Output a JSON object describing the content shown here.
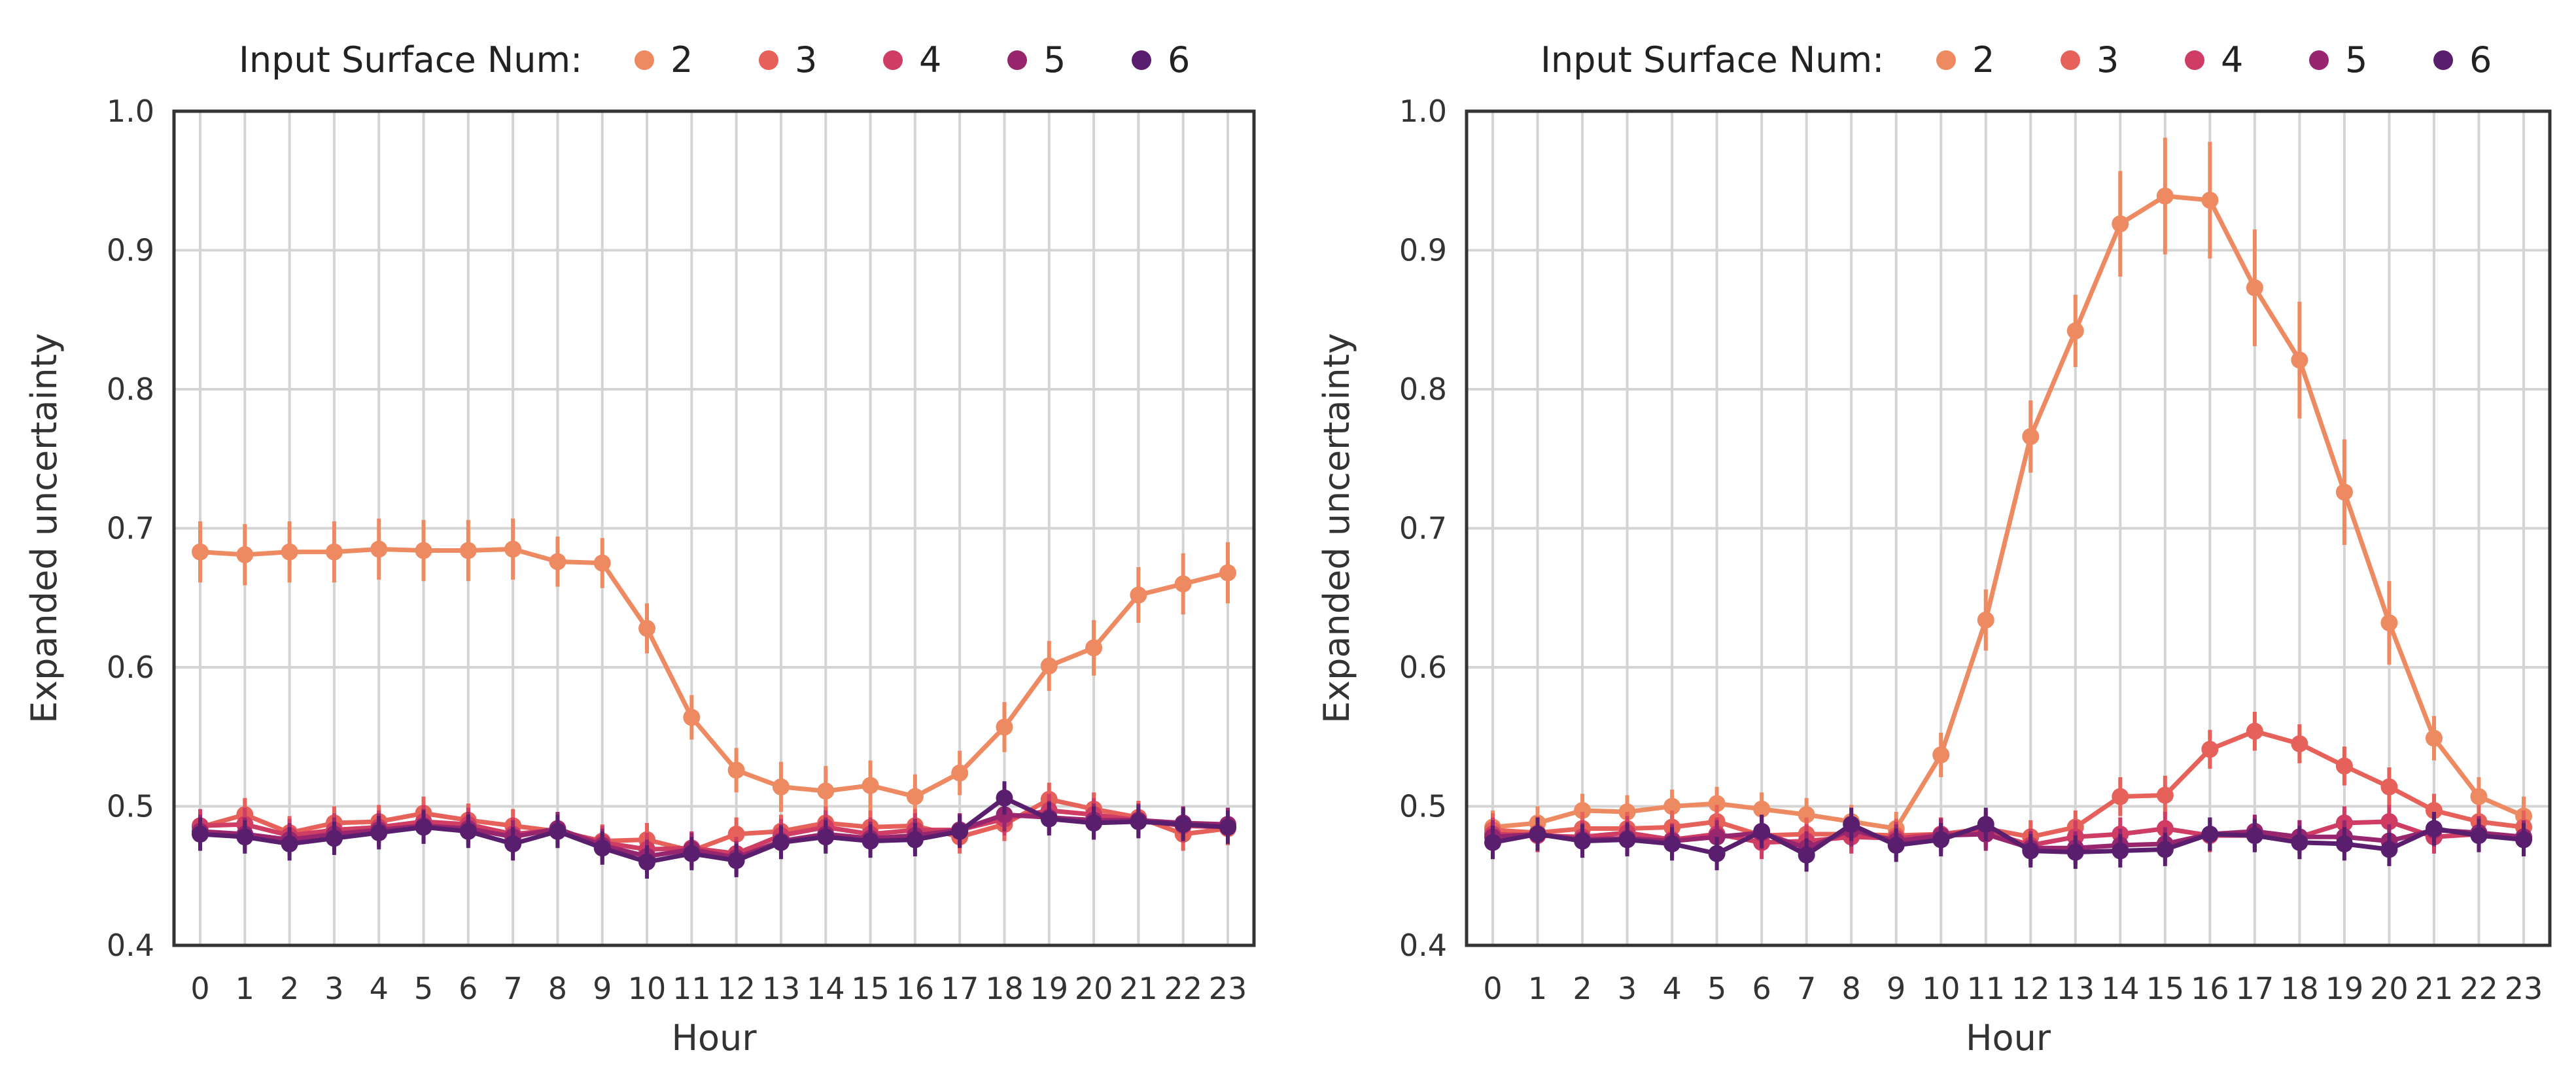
{
  "colors": {
    "2": "#ee8a62",
    "3": "#e6615a",
    "4": "#cf3c64",
    "5": "#97266f",
    "6": "#5a1e6e",
    "grid": "#d4d4d4",
    "frame": "#333333"
  },
  "chart_data": [
    {
      "type": "line",
      "legend_title": "Input Surface Num:",
      "legend_position": "top",
      "xlabel": "Hour",
      "ylabel": "Expanded uncertainty",
      "x": [
        0,
        1,
        2,
        3,
        4,
        5,
        6,
        7,
        8,
        9,
        10,
        11,
        12,
        13,
        14,
        15,
        16,
        17,
        18,
        19,
        20,
        21,
        22,
        23
      ],
      "ylim": [
        0.4,
        1.0
      ],
      "yticks": [
        "0.4",
        "0.5",
        "0.6",
        "0.7",
        "0.8",
        "0.9",
        "1.0"
      ],
      "grid": true,
      "series": [
        {
          "name": "2",
          "values": [
            0.683,
            0.681,
            0.683,
            0.683,
            0.685,
            0.684,
            0.684,
            0.685,
            0.676,
            0.675,
            0.628,
            0.564,
            0.526,
            0.514,
            0.511,
            0.515,
            0.507,
            0.524,
            0.557,
            0.601,
            0.614,
            0.652,
            0.66,
            0.668
          ],
          "errors": [
            0.022,
            0.022,
            0.022,
            0.022,
            0.022,
            0.022,
            0.022,
            0.022,
            0.018,
            0.018,
            0.018,
            0.016,
            0.016,
            0.018,
            0.018,
            0.018,
            0.016,
            0.016,
            0.018,
            0.018,
            0.02,
            0.02,
            0.022,
            0.022
          ]
        },
        {
          "name": "3",
          "values": [
            0.485,
            0.494,
            0.481,
            0.488,
            0.489,
            0.495,
            0.49,
            0.486,
            0.482,
            0.475,
            0.476,
            0.468,
            0.48,
            0.482,
            0.488,
            0.485,
            0.486,
            0.478,
            0.487,
            0.505,
            0.498,
            0.492,
            0.48,
            0.484
          ],
          "errors": [
            0.012,
            0.012,
            0.012,
            0.012,
            0.012,
            0.012,
            0.012,
            0.012,
            0.012,
            0.012,
            0.012,
            0.012,
            0.012,
            0.012,
            0.012,
            0.012,
            0.012,
            0.012,
            0.012,
            0.012,
            0.012,
            0.012,
            0.012,
            0.012
          ]
        },
        {
          "name": "4",
          "values": [
            0.486,
            0.487,
            0.479,
            0.483,
            0.485,
            0.489,
            0.487,
            0.48,
            0.483,
            0.474,
            0.469,
            0.47,
            0.466,
            0.479,
            0.485,
            0.48,
            0.483,
            0.483,
            0.491,
            0.497,
            0.494,
            0.49,
            0.486,
            0.485
          ],
          "errors": [
            0.012,
            0.012,
            0.012,
            0.012,
            0.012,
            0.012,
            0.012,
            0.012,
            0.012,
            0.012,
            0.012,
            0.012,
            0.012,
            0.012,
            0.012,
            0.012,
            0.012,
            0.012,
            0.012,
            0.012,
            0.012,
            0.012,
            0.012,
            0.012
          ]
        },
        {
          "name": "5",
          "values": [
            0.482,
            0.48,
            0.476,
            0.48,
            0.483,
            0.486,
            0.484,
            0.478,
            0.484,
            0.472,
            0.464,
            0.469,
            0.463,
            0.475,
            0.48,
            0.477,
            0.479,
            0.483,
            0.494,
            0.492,
            0.49,
            0.49,
            0.488,
            0.487
          ],
          "errors": [
            0.012,
            0.012,
            0.012,
            0.012,
            0.012,
            0.012,
            0.012,
            0.012,
            0.012,
            0.012,
            0.012,
            0.012,
            0.012,
            0.012,
            0.012,
            0.012,
            0.012,
            0.012,
            0.012,
            0.012,
            0.012,
            0.012,
            0.012,
            0.012
          ]
        },
        {
          "name": "6",
          "values": [
            0.48,
            0.478,
            0.473,
            0.477,
            0.481,
            0.485,
            0.482,
            0.473,
            0.482,
            0.47,
            0.46,
            0.466,
            0.461,
            0.474,
            0.478,
            0.475,
            0.476,
            0.482,
            0.506,
            0.491,
            0.488,
            0.489,
            0.487,
            0.485
          ],
          "errors": [
            0.012,
            0.012,
            0.012,
            0.012,
            0.012,
            0.012,
            0.012,
            0.012,
            0.012,
            0.012,
            0.012,
            0.012,
            0.012,
            0.012,
            0.012,
            0.012,
            0.012,
            0.012,
            0.012,
            0.012,
            0.012,
            0.012,
            0.012,
            0.012
          ]
        }
      ]
    },
    {
      "type": "line",
      "legend_title": "Input Surface Num:",
      "legend_position": "top",
      "xlabel": "Hour",
      "ylabel": "Expanded uncertainty",
      "x": [
        0,
        1,
        2,
        3,
        4,
        5,
        6,
        7,
        8,
        9,
        10,
        11,
        12,
        13,
        14,
        15,
        16,
        17,
        18,
        19,
        20,
        21,
        22,
        23
      ],
      "ylim": [
        0.4,
        1.0
      ],
      "yticks": [
        "0.4",
        "0.5",
        "0.6",
        "0.7",
        "0.8",
        "0.9",
        "1.0"
      ],
      "grid": true,
      "series": [
        {
          "name": "2",
          "values": [
            0.485,
            0.488,
            0.497,
            0.496,
            0.5,
            0.502,
            0.498,
            0.494,
            0.489,
            0.484,
            0.537,
            0.634,
            0.766,
            0.842,
            0.919,
            0.939,
            0.936,
            0.873,
            0.821,
            0.726,
            0.632,
            0.549,
            0.507,
            0.493
          ],
          "errors": [
            0.012,
            0.012,
            0.012,
            0.012,
            0.012,
            0.012,
            0.012,
            0.012,
            0.012,
            0.012,
            0.016,
            0.022,
            0.026,
            0.026,
            0.038,
            0.042,
            0.042,
            0.042,
            0.042,
            0.038,
            0.03,
            0.016,
            0.014,
            0.014
          ]
        },
        {
          "name": "3",
          "values": [
            0.483,
            0.481,
            0.484,
            0.484,
            0.485,
            0.489,
            0.479,
            0.48,
            0.48,
            0.479,
            0.48,
            0.484,
            0.478,
            0.485,
            0.507,
            0.508,
            0.541,
            0.554,
            0.545,
            0.529,
            0.514,
            0.497,
            0.489,
            0.485
          ],
          "errors": [
            0.012,
            0.012,
            0.012,
            0.012,
            0.012,
            0.012,
            0.012,
            0.012,
            0.012,
            0.012,
            0.012,
            0.012,
            0.012,
            0.012,
            0.014,
            0.014,
            0.014,
            0.014,
            0.014,
            0.014,
            0.014,
            0.012,
            0.012,
            0.012
          ]
        },
        {
          "name": "4",
          "values": [
            0.48,
            0.479,
            0.478,
            0.481,
            0.476,
            0.48,
            0.474,
            0.475,
            0.478,
            0.477,
            0.48,
            0.482,
            0.472,
            0.478,
            0.48,
            0.484,
            0.479,
            0.479,
            0.478,
            0.488,
            0.489,
            0.478,
            0.48,
            0.477
          ],
          "errors": [
            0.012,
            0.012,
            0.012,
            0.012,
            0.012,
            0.012,
            0.012,
            0.012,
            0.012,
            0.012,
            0.012,
            0.012,
            0.012,
            0.012,
            0.012,
            0.012,
            0.012,
            0.012,
            0.012,
            0.012,
            0.012,
            0.012,
            0.012,
            0.012
          ]
        },
        {
          "name": "5",
          "values": [
            0.478,
            0.48,
            0.476,
            0.477,
            0.475,
            0.478,
            0.481,
            0.47,
            0.483,
            0.475,
            0.479,
            0.48,
            0.47,
            0.47,
            0.472,
            0.473,
            0.48,
            0.482,
            0.478,
            0.478,
            0.475,
            0.483,
            0.481,
            0.478
          ],
          "errors": [
            0.012,
            0.012,
            0.012,
            0.012,
            0.012,
            0.012,
            0.012,
            0.012,
            0.012,
            0.012,
            0.012,
            0.012,
            0.012,
            0.012,
            0.012,
            0.012,
            0.012,
            0.012,
            0.012,
            0.012,
            0.012,
            0.012,
            0.012,
            0.012
          ]
        },
        {
          "name": "6",
          "values": [
            0.474,
            0.48,
            0.475,
            0.476,
            0.473,
            0.466,
            0.482,
            0.465,
            0.487,
            0.472,
            0.476,
            0.487,
            0.468,
            0.467,
            0.468,
            0.469,
            0.48,
            0.479,
            0.474,
            0.473,
            0.469,
            0.484,
            0.479,
            0.476
          ],
          "errors": [
            0.012,
            0.012,
            0.012,
            0.012,
            0.012,
            0.012,
            0.012,
            0.012,
            0.012,
            0.012,
            0.012,
            0.012,
            0.012,
            0.012,
            0.012,
            0.012,
            0.012,
            0.012,
            0.012,
            0.012,
            0.012,
            0.012,
            0.012,
            0.012
          ]
        }
      ]
    }
  ]
}
